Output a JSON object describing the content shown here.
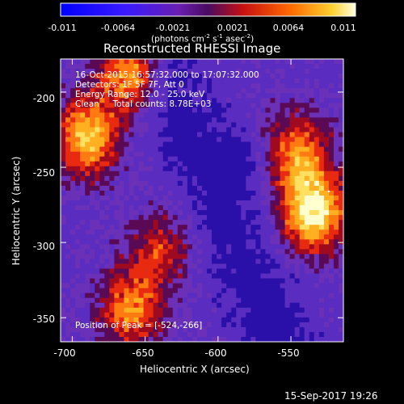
{
  "colorbar": {
    "ticks": [
      "-0.011",
      "-0.0064",
      "-0.0021",
      "0.0021",
      "0.0064",
      "0.011"
    ],
    "unit_label": "(photons cm",
    "unit_exp1": "-2",
    "unit_mid": " s",
    "unit_exp2": "-1",
    "unit_end": " asec",
    "unit_exp3": "-2",
    "unit_close": ")"
  },
  "chart_data": {
    "type": "heatmap",
    "title": "Reconstructed RHESSI Image",
    "xlabel": "Heliocentric X (arcsec)",
    "ylabel": "Heliocentric Y (arcsec)",
    "xlim": [
      -708,
      -514
    ],
    "ylim": [
      -366,
      -178
    ],
    "xticks": [
      "-700",
      "-650",
      "-600",
      "-550"
    ],
    "yticks": [
      "-200",
      "-250",
      "-300",
      "-350"
    ],
    "value_range": [
      -0.011,
      0.011
    ],
    "colormap": "rhessi-flux (blue-purple-red-orange-yellow-white)",
    "peak": {
      "x": -524,
      "y": -266
    },
    "sources": [
      {
        "x": -690,
        "y": -230,
        "strength": "strong"
      },
      {
        "x": -660,
        "y": -185,
        "strength": "strong"
      },
      {
        "x": -535,
        "y": -280,
        "strength": "strongest"
      },
      {
        "x": -545,
        "y": -240,
        "strength": "medium"
      },
      {
        "x": -660,
        "y": -345,
        "strength": "medium"
      },
      {
        "x": -640,
        "y": -305,
        "strength": "weak"
      }
    ],
    "annotations": [
      "16-Oct-2015 16:57:32.000 to 17:07:32.000",
      "Detectors: 1F 5F 7F, Att 0",
      "Energy Range: 12.0 - 25.0 keV",
      "Clean     Total counts: 8.78E+03",
      "Position of Peak = [-524,-266]"
    ]
  },
  "footer": {
    "timestamp": "15-Sep-2017 19:26"
  }
}
